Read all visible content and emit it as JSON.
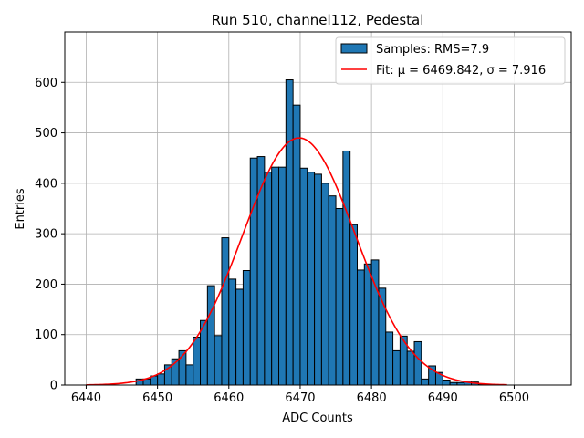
{
  "chart_data": {
    "type": "bar",
    "title": "Run 510, channel112, Pedestal",
    "xlabel": "ADC Counts",
    "ylabel": "Entries",
    "xlim": [
      6437,
      6508
    ],
    "ylim": [
      0,
      700
    ],
    "xticks": [
      6440,
      6450,
      6460,
      6470,
      6480,
      6490,
      6500
    ],
    "yticks": [
      0,
      100,
      200,
      300,
      400,
      500,
      600
    ],
    "grid": true,
    "legend_position": "top-right",
    "bar_color": "#1f77b4",
    "fit_color": "#ff0000",
    "series": [
      {
        "name": "Samples: RMS=7.9",
        "type": "bar",
        "bin_start": 6447,
        "bin_width": 1,
        "values": [
          12,
          12,
          18,
          22,
          40,
          52,
          68,
          40,
          95,
          128,
          197,
          98,
          292,
          210,
          190,
          227,
          450,
          453,
          422,
          432,
          432,
          605,
          555,
          430,
          422,
          418,
          400,
          375,
          350,
          464,
          318,
          228,
          240,
          248,
          192,
          105,
          68,
          97,
          67,
          86,
          12,
          38,
          25,
          10,
          5,
          5,
          8,
          6,
          2
        ]
      },
      {
        "name": "Fit: μ = 6469.842, σ = 7.916",
        "type": "line",
        "mu": 6469.842,
        "sigma": 7.916,
        "amplitude": 490,
        "x_range": [
          6440,
          6499
        ]
      }
    ],
    "legend": [
      "Samples: RMS=7.9",
      "Fit: μ = 6469.842, σ = 7.916"
    ]
  }
}
